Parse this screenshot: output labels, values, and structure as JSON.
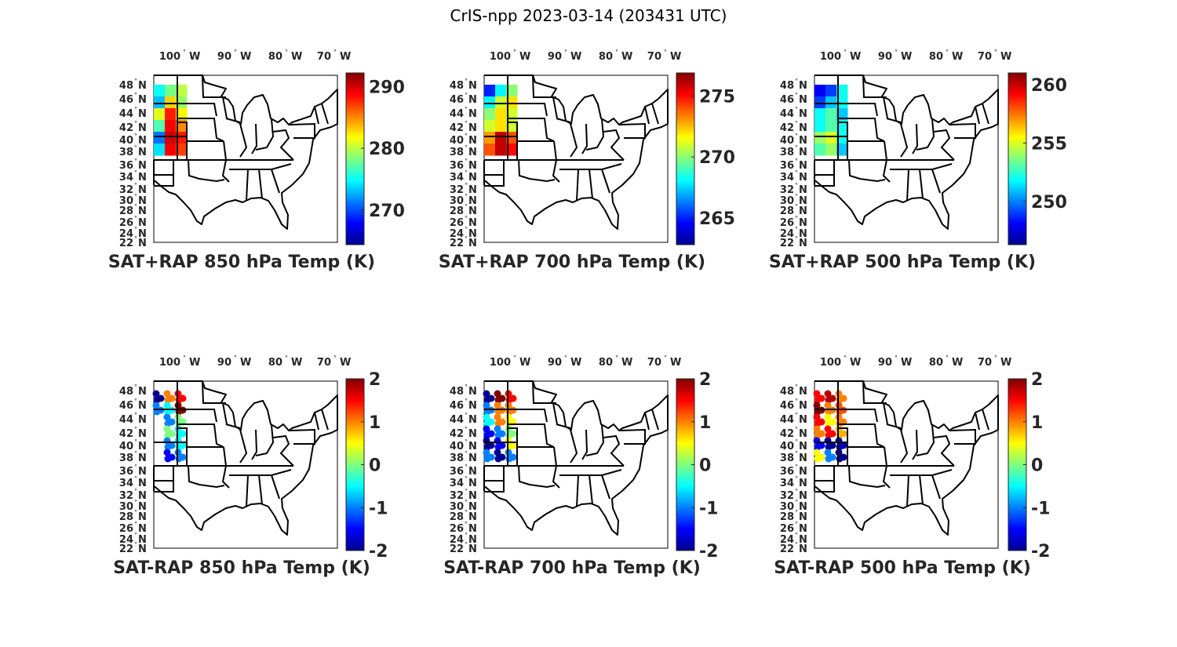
{
  "figure_title": "CrIS-npp 2023-03-14 (203431 UTC)",
  "colors": {
    "jet": [
      "#00008f",
      "#0000ff",
      "#00ffff",
      "#ffff00",
      "#ff0000",
      "#800000"
    ],
    "outline": "#000000"
  },
  "axes": {
    "lon_ticks": [
      "100",
      "90",
      "80",
      "70"
    ],
    "lon_suffix": "W",
    "lat_ticks": [
      "48",
      "46",
      "44",
      "42",
      "40",
      "38",
      "36",
      "34",
      "32",
      "30",
      "28",
      "26",
      "24",
      "22"
    ],
    "lat_suffix": "N",
    "degree_symbol": "°"
  },
  "chart_data": [
    {
      "type": "heatmap",
      "title": "SAT+RAP 850 hPa Temp (K)",
      "clim": [
        264.4,
        292.2
      ],
      "cbar_ticks": [
        290,
        280,
        270
      ],
      "cbar_labels": [
        "290",
        "280",
        "270"
      ],
      "grid_note_rows": "lat 48N→38N, lon 105W→99W",
      "values": [
        [
          275,
          278,
          280
        ],
        [
          273,
          283,
          279
        ],
        [
          281,
          288,
          282
        ],
        [
          277,
          289,
          285
        ],
        [
          271,
          290,
          288
        ],
        [
          274,
          289,
          287
        ]
      ]
    },
    {
      "type": "heatmap",
      "title": "SAT+RAP 700 hPa Temp (K)",
      "clim": [
        262.8,
        276.9
      ],
      "cbar_ticks": [
        275,
        270,
        265
      ],
      "cbar_labels": [
        "275",
        "270",
        "265"
      ],
      "values": [
        [
          265,
          268,
          270
        ],
        [
          268,
          271,
          272
        ],
        [
          270,
          272,
          271
        ],
        [
          271,
          272,
          271
        ],
        [
          273,
          276,
          274
        ],
        [
          274,
          276,
          275
        ]
      ]
    },
    {
      "type": "heatmap",
      "title": "SAT+RAP 500 hPa Temp (K)",
      "clim": [
        246.3,
        261
      ],
      "cbar_ticks": [
        260,
        255,
        250
      ],
      "cbar_labels": [
        "260",
        "255",
        "250"
      ],
      "values": [
        [
          248,
          249,
          252
        ],
        [
          249,
          251,
          252
        ],
        [
          252,
          253,
          251
        ],
        [
          252,
          253,
          252
        ],
        [
          254,
          255,
          252
        ],
        [
          253,
          254,
          251
        ]
      ]
    },
    {
      "type": "scatter",
      "title": "SAT-RAP 850 hPa Temp (K)",
      "clim": [
        -2,
        2
      ],
      "cbar_ticks": [
        2,
        1,
        0,
        -1,
        -2
      ],
      "cbar_labels": [
        "2",
        "1",
        "0",
        "-1",
        "-2"
      ],
      "values": [
        [
          -2,
          1,
          1.5
        ],
        [
          -1,
          -0.5,
          2
        ],
        [
          null,
          -1,
          0
        ],
        [
          null,
          0,
          -0.5
        ],
        [
          null,
          -1,
          -0.5
        ],
        [
          null,
          -1.5,
          -1
        ]
      ]
    },
    {
      "type": "scatter",
      "title": "SAT-RAP 700 hPa Temp (K)",
      "clim": [
        -2,
        2
      ],
      "cbar_ticks": [
        2,
        1,
        0,
        -1,
        -2
      ],
      "cbar_labels": [
        "2",
        "1",
        "0",
        "-1",
        "-2"
      ],
      "values": [
        [
          -2,
          2,
          1.5
        ],
        [
          -1,
          1,
          1
        ],
        [
          -0.5,
          1,
          0.5
        ],
        [
          -1.5,
          -1,
          0
        ],
        [
          -2,
          -1.5,
          0.5
        ],
        [
          -1,
          -2,
          -1
        ]
      ]
    },
    {
      "type": "scatter",
      "title": "SAT-RAP 500 hPa Temp (K)",
      "clim": [
        -2,
        2
      ],
      "cbar_ticks": [
        2,
        1,
        0,
        -1,
        -2
      ],
      "cbar_labels": [
        "2",
        "1",
        "0",
        "-1",
        "-2"
      ],
      "values": [
        [
          1.5,
          1.8,
          1
        ],
        [
          2,
          1,
          1.2
        ],
        [
          1.5,
          0.5,
          1
        ],
        [
          1,
          1.5,
          0.8
        ],
        [
          -1.5,
          -2,
          -1.8
        ],
        [
          0.5,
          -1,
          -2
        ]
      ]
    }
  ]
}
